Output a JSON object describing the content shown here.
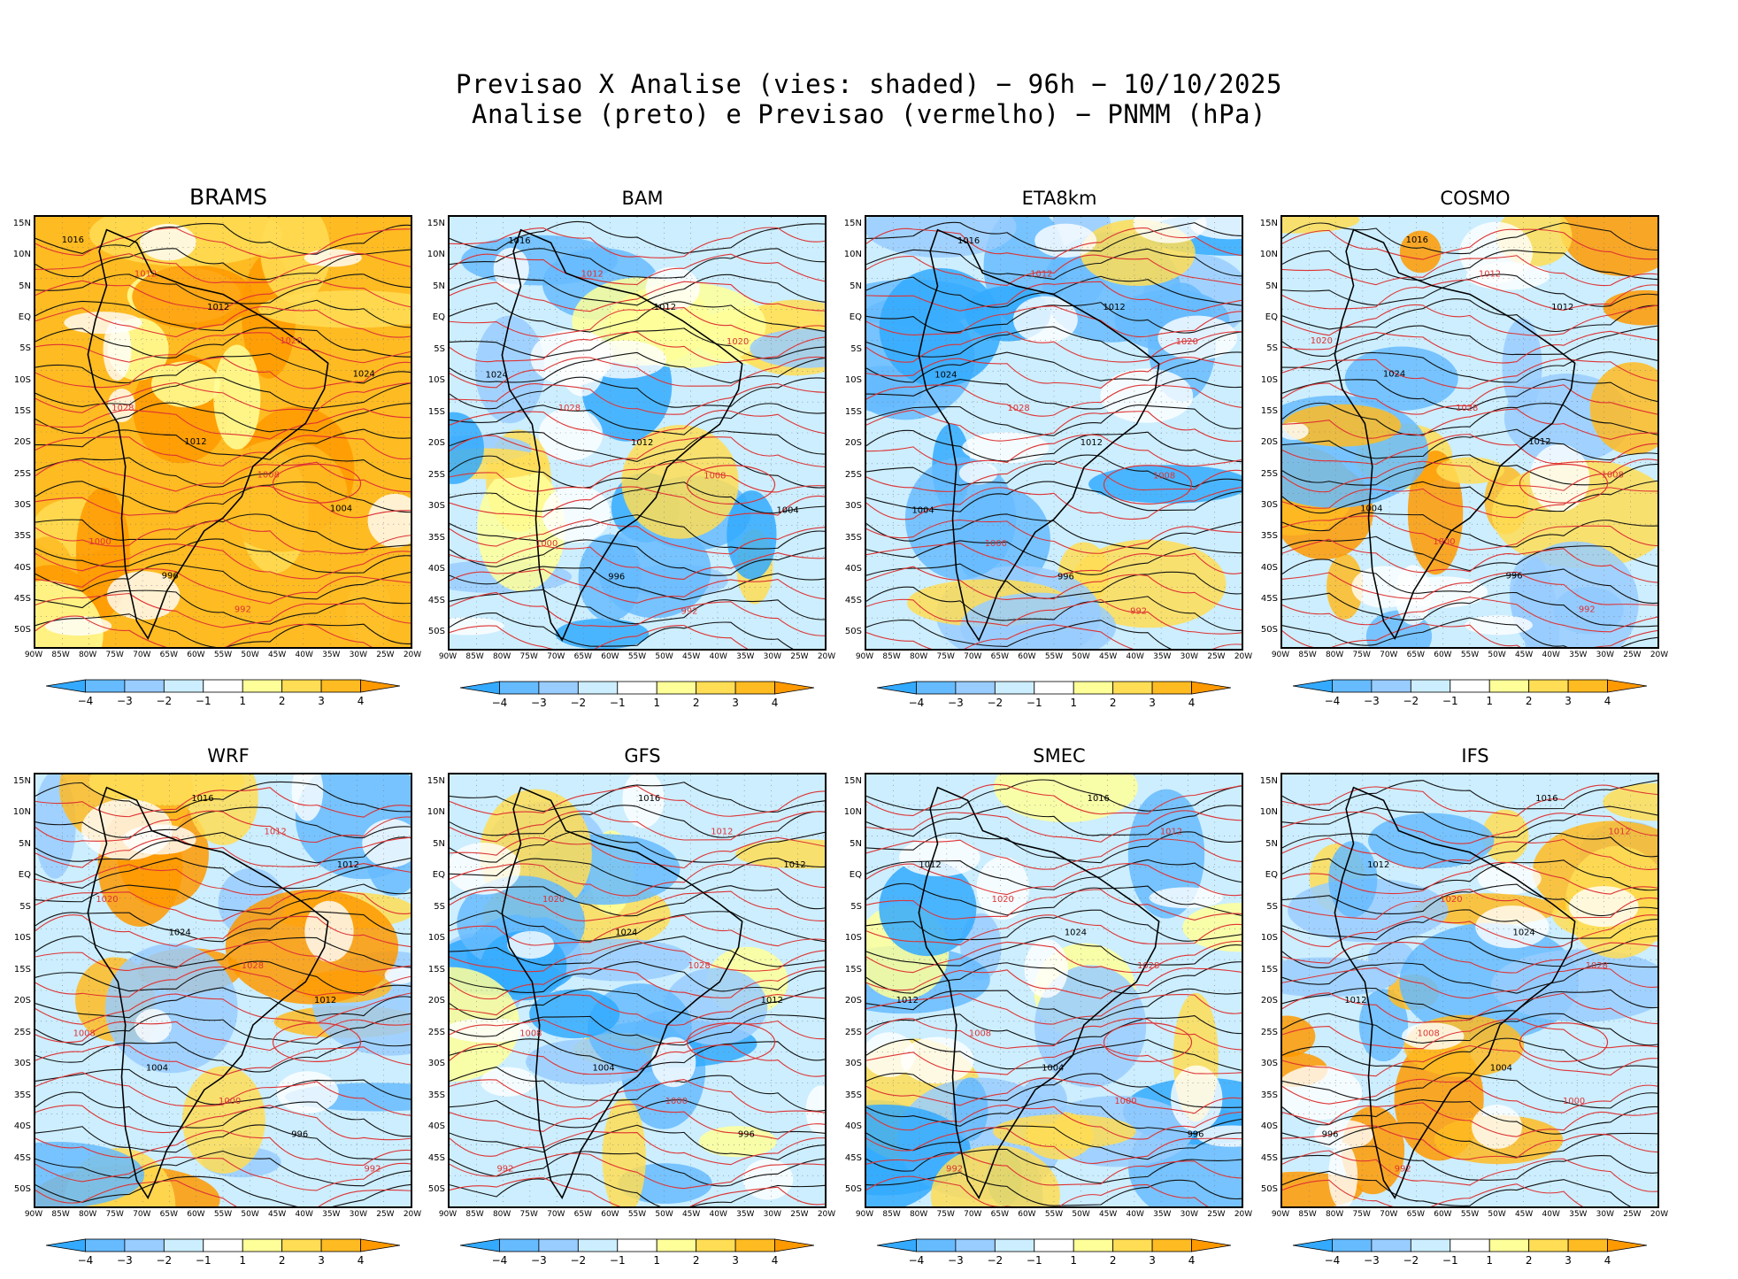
{
  "figure": {
    "title_line1": "Previsao X Analise (vies: shaded) − 96h − 10/10/2025",
    "title_line2": "Analise (preto) e Previsao (vermelho) − PNMM (hPa)"
  },
  "panels": [
    {
      "name": "BRAMS",
      "bias": "warm"
    },
    {
      "name": "BAM",
      "bias": "mixed"
    },
    {
      "name": "ETA8km",
      "bias": "cool"
    },
    {
      "name": "COSMO",
      "bias": "mixed-warm"
    },
    {
      "name": "WRF",
      "bias": "mixed-warm"
    },
    {
      "name": "GFS",
      "bias": "mixed"
    },
    {
      "name": "SMEC",
      "bias": "mixed"
    },
    {
      "name": "IFS",
      "bias": "mixed-warm"
    }
  ],
  "axes": {
    "lat_labels": [
      "15N",
      "10N",
      "5N",
      "EQ",
      "5S",
      "10S",
      "15S",
      "20S",
      "25S",
      "30S",
      "35S",
      "40S",
      "45S",
      "50S"
    ],
    "lon_labels": [
      "90W",
      "85W",
      "80W",
      "75W",
      "70W",
      "65W",
      "60W",
      "55W",
      "50W",
      "45W",
      "40W",
      "35W",
      "30W",
      "25W",
      "20W"
    ]
  },
  "isobar_labels": [
    "1016",
    "1012",
    "1012",
    "1020",
    "1024",
    "1028",
    "1012",
    "1008",
    "1004",
    "1000",
    "996",
    "992"
  ],
  "colorbar": {
    "labels": [
      "−4",
      "−3",
      "−2",
      "−1",
      "1",
      "2",
      "3",
      "4"
    ],
    "colors": [
      "#33aaff",
      "#66bbff",
      "#99ccff",
      "#cceeff",
      "#ffffff",
      "#ffff99",
      "#ffdd55",
      "#ffbb22",
      "#ff9900"
    ]
  }
}
